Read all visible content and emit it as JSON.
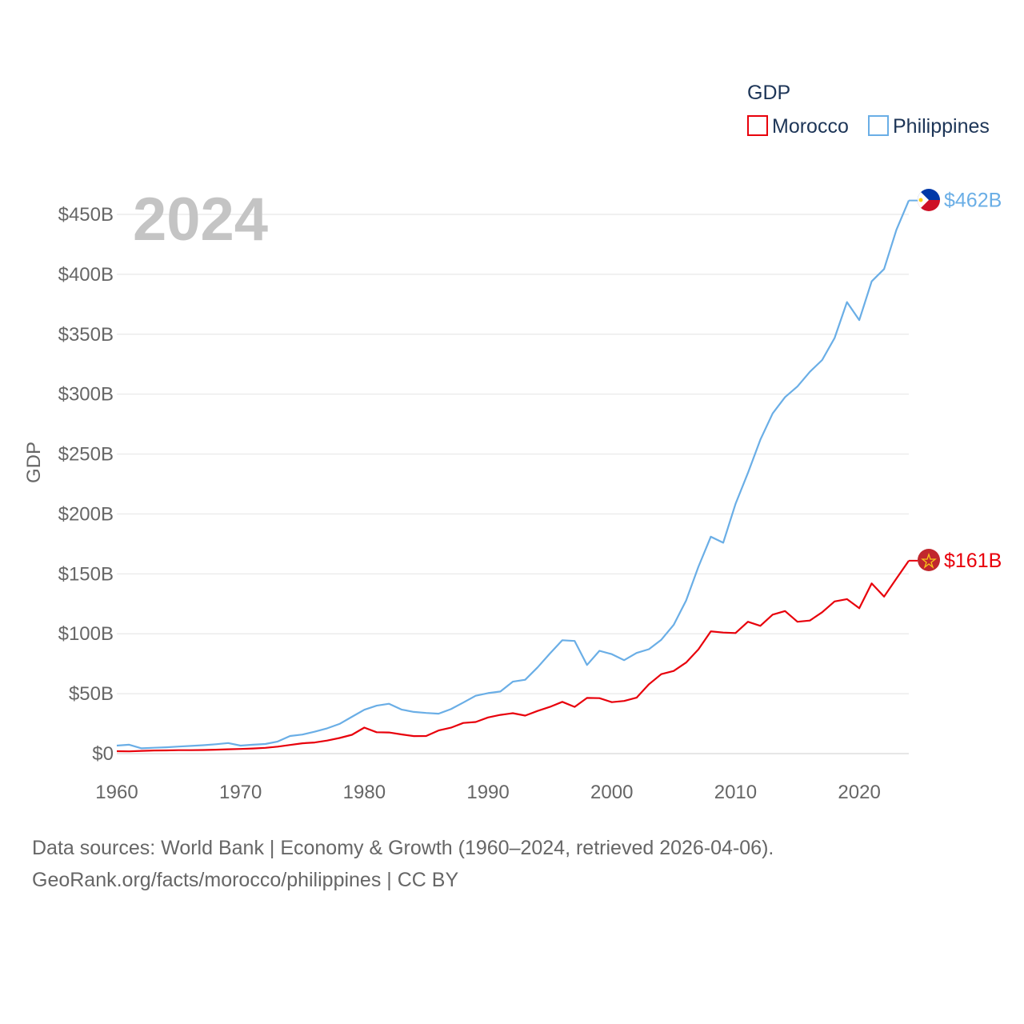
{
  "chart_data": {
    "type": "line",
    "title": "",
    "year_label": "2024",
    "legend_title": "GDP",
    "ylabel": "GDP",
    "xlabel": "",
    "xlim": [
      1960,
      2024
    ],
    "ylim": [
      0,
      460
    ],
    "x_ticks": [
      1960,
      1970,
      1980,
      1990,
      2000,
      2010,
      2020
    ],
    "x_tick_labels": [
      "1960",
      "1970",
      "1980",
      "1990",
      "2000",
      "2010",
      "2020"
    ],
    "y_ticks": [
      0,
      50,
      100,
      150,
      200,
      250,
      300,
      350,
      400,
      450
    ],
    "y_tick_labels": [
      "$0",
      "$50B",
      "$100B",
      "$150B",
      "$200B",
      "$250B",
      "$300B",
      "$350B",
      "$400B",
      "$450B"
    ],
    "grid": true,
    "units": "billions USD",
    "x": [
      1960,
      1961,
      1962,
      1963,
      1964,
      1965,
      1966,
      1967,
      1968,
      1969,
      1970,
      1971,
      1972,
      1973,
      1974,
      1975,
      1976,
      1977,
      1978,
      1979,
      1980,
      1981,
      1982,
      1983,
      1984,
      1985,
      1986,
      1987,
      1988,
      1989,
      1990,
      1991,
      1992,
      1993,
      1994,
      1995,
      1996,
      1997,
      1998,
      1999,
      2000,
      2001,
      2002,
      2003,
      2004,
      2005,
      2006,
      2007,
      2008,
      2009,
      2010,
      2011,
      2012,
      2013,
      2014,
      2015,
      2016,
      2017,
      2018,
      2019,
      2020,
      2021,
      2022,
      2023,
      2024
    ],
    "series": [
      {
        "name": "Morocco",
        "color": "#e8000b",
        "end_label": "$161B",
        "flag": "morocco-flag",
        "values": [
          2.0,
          1.9,
          2.3,
          2.6,
          2.7,
          2.9,
          2.9,
          3.0,
          3.3,
          3.6,
          3.9,
          4.3,
          4.8,
          5.8,
          7.2,
          8.6,
          9.3,
          10.9,
          13.0,
          15.7,
          21.7,
          17.8,
          17.6,
          16.0,
          14.6,
          14.7,
          19.3,
          21.6,
          25.6,
          26.4,
          30.2,
          32.3,
          33.7,
          31.7,
          35.6,
          39.0,
          43.2,
          39.0,
          46.5,
          46.3,
          42.9,
          43.9,
          46.7,
          57.9,
          66.3,
          69.0,
          76.0,
          87.0,
          102.0,
          101.0,
          100.6,
          110.0,
          106.6,
          116.0,
          119.0,
          110.0,
          111.0,
          118.0,
          127.0,
          128.9,
          121.3,
          142.0,
          131.0,
          146.0,
          161.0
        ]
      },
      {
        "name": "Philippines",
        "color": "#6aaee6",
        "end_label": "$462B",
        "flag": "philippines-flag",
        "values": [
          6.7,
          7.4,
          4.4,
          4.9,
          5.3,
          5.9,
          6.4,
          7.0,
          7.8,
          8.8,
          6.7,
          7.4,
          8.0,
          10.1,
          14.7,
          15.9,
          18.3,
          21.1,
          24.8,
          30.7,
          36.6,
          40.0,
          41.6,
          36.8,
          34.8,
          33.9,
          33.3,
          37.1,
          42.6,
          48.3,
          50.5,
          51.8,
          60.0,
          61.6,
          71.9,
          83.5,
          94.6,
          94.0,
          74.0,
          85.8,
          83.0,
          78.0,
          84.0,
          87.1,
          95.0,
          107.4,
          127.7,
          155.9,
          181.0,
          176.0,
          208.4,
          234.2,
          261.9,
          283.9,
          297.5,
          306.4,
          318.6,
          328.5,
          346.8,
          376.8,
          361.8,
          394.1,
          404.4,
          437.1,
          461.6
        ]
      }
    ]
  },
  "source": {
    "line1": "Data sources: World Bank | Economy & Growth (1960–2024, retrieved 2026-04-06).",
    "line2": "GeoRank.org/facts/morocco/philippines | CC BY"
  }
}
